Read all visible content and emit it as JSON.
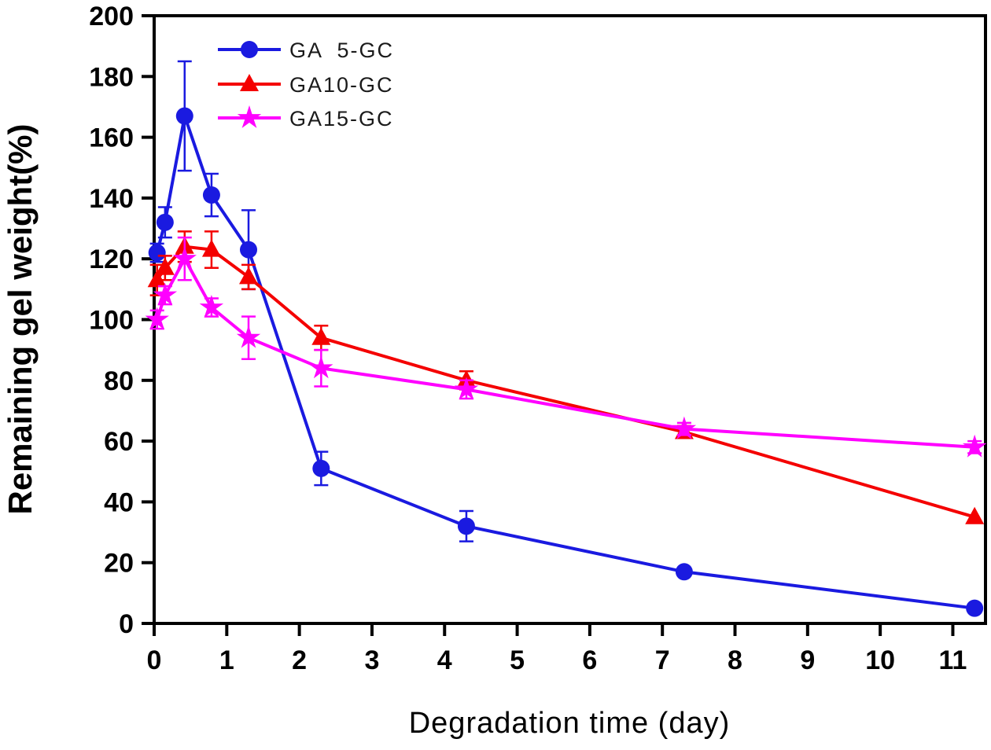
{
  "figure": {
    "background": "#ffffff",
    "axis_color": "#000000"
  },
  "chart_data": {
    "type": "line",
    "title": "",
    "xlabel": "Degradation time (day)",
    "ylabel": "Remaining gel weight(%)",
    "xlim": [
      0,
      11.45
    ],
    "ylim": [
      0,
      200
    ],
    "xticks": [
      0,
      1,
      2,
      3,
      4,
      5,
      6,
      7,
      8,
      9,
      10,
      11
    ],
    "yticks": [
      0,
      20,
      40,
      60,
      80,
      100,
      120,
      140,
      160,
      180,
      200
    ],
    "grid": false,
    "legend_position": "top-left-inside",
    "x": [
      0.04,
      0.15,
      0.42,
      0.79,
      1.3,
      2.3,
      4.3,
      7.3,
      11.3
    ],
    "series": [
      {
        "name": "GA  5-GC",
        "color": "#1a1ae0",
        "marker": "circle",
        "values": [
          122,
          132,
          167,
          141,
          123,
          51,
          32,
          17,
          5
        ],
        "yerr": [
          3,
          5,
          18,
          7,
          13,
          5.5,
          5,
          0,
          0
        ]
      },
      {
        "name": "GA10-GC",
        "color": "#f40000",
        "marker": "triangle",
        "values": [
          113,
          117,
          124,
          123,
          114,
          94,
          80,
          63,
          35
        ],
        "yerr": [
          5,
          4,
          5,
          6,
          4,
          4,
          3,
          2,
          0
        ]
      },
      {
        "name": "GA15-GC",
        "color": "#ff00ff",
        "marker": "star",
        "values": [
          100,
          108,
          120,
          104,
          94,
          84,
          77,
          64,
          58
        ],
        "yerr": [
          3,
          3,
          7,
          3,
          7,
          6,
          3,
          2,
          2
        ]
      }
    ]
  }
}
